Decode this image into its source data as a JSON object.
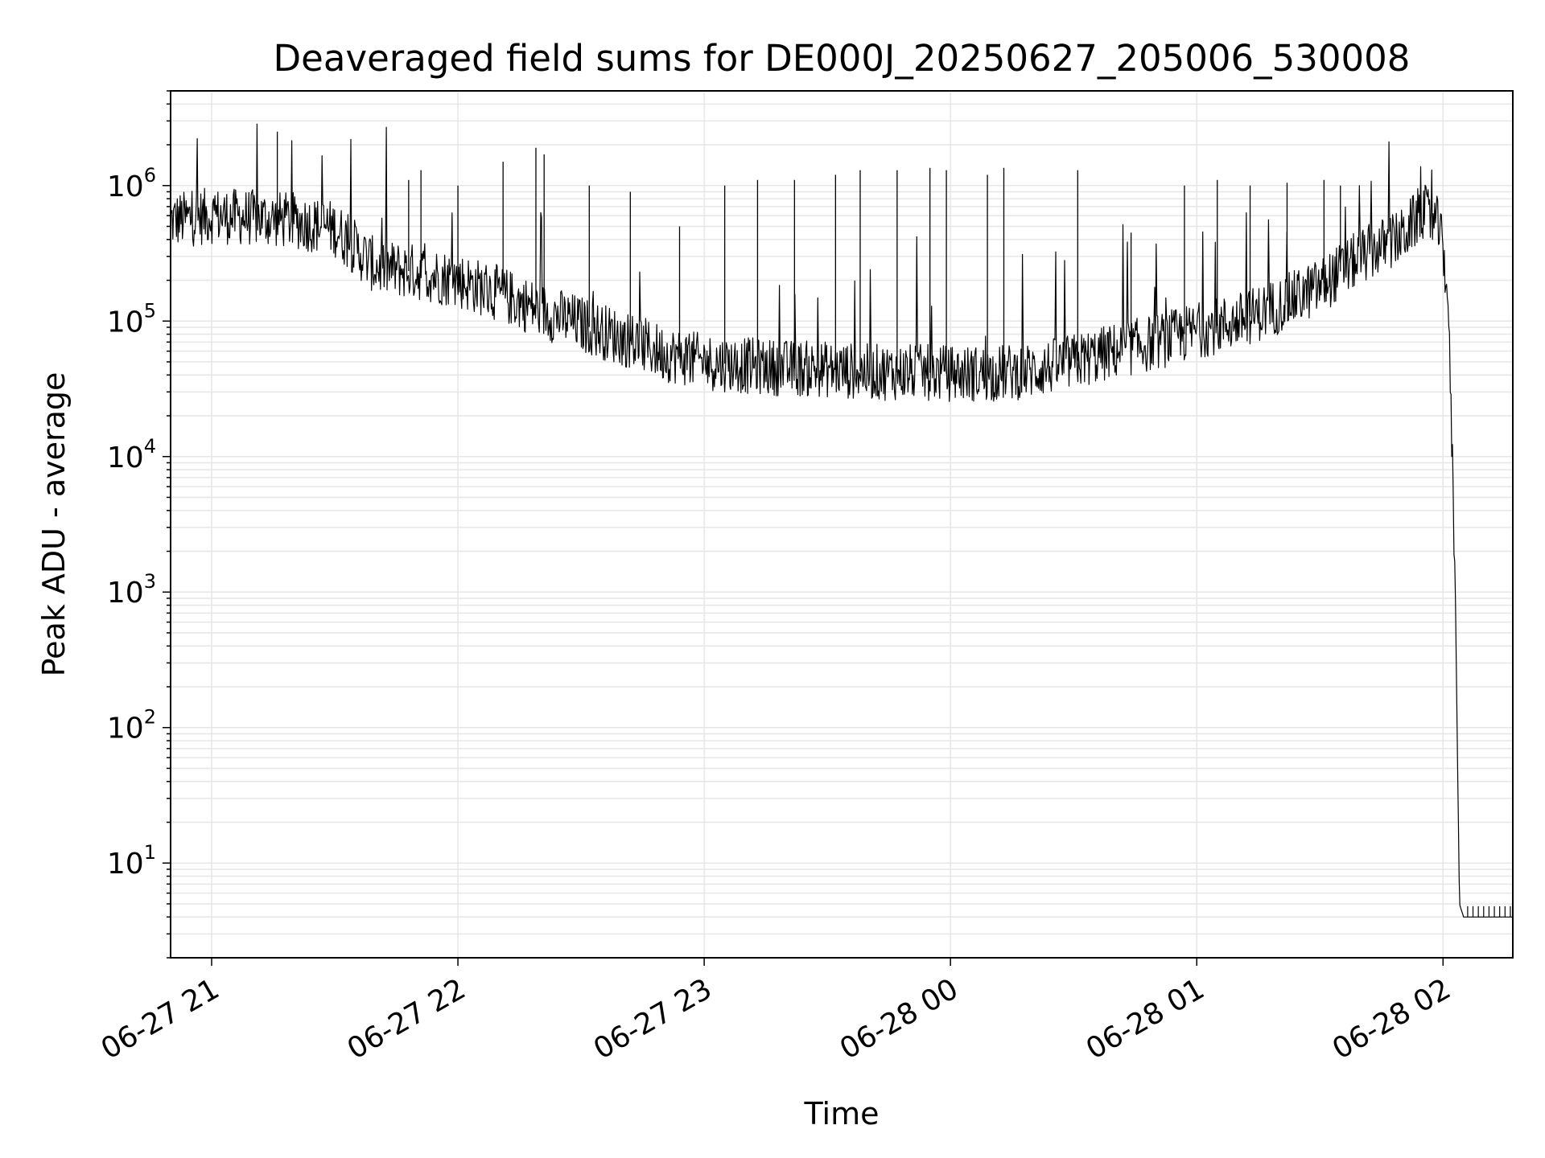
{
  "chart_data": {
    "type": "line",
    "title": "Deaveraged field sums for DE000J_20250627_205006_530008",
    "xlabel": "Time",
    "ylabel": "Peak ADU - average",
    "yscale": "log",
    "grid": true,
    "xlim": [
      "06-27 20:50",
      "06-28 02:17"
    ],
    "ylim": [
      2,
      5000000
    ],
    "x_ticks": [
      "06-27 21",
      "06-27 22",
      "06-27 23",
      "06-28 00",
      "06-28 01",
      "06-28 02"
    ],
    "y_ticks": [
      {
        "base": "10",
        "exp": "1",
        "value": 10
      },
      {
        "base": "10",
        "exp": "2",
        "value": 100
      },
      {
        "base": "10",
        "exp": "3",
        "value": 1000
      },
      {
        "base": "10",
        "exp": "4",
        "value": 10000
      },
      {
        "base": "10",
        "exp": "5",
        "value": 100000
      },
      {
        "base": "10",
        "exp": "6",
        "value": 1000000
      }
    ],
    "line_color": "#000000",
    "grid_color": "#e6e6e6",
    "series": [
      {
        "baseline_x": [
          "06-27 20:50",
          "06-27 21:00",
          "06-27 21:10",
          "06-27 21:20",
          "06-27 21:30",
          "06-27 21:40",
          "06-27 21:50",
          "06-27 22:00",
          "06-27 22:10",
          "06-27 22:20",
          "06-27 22:30",
          "06-27 22:40",
          "06-27 22:50",
          "06-27 23:00",
          "06-27 23:10",
          "06-27 23:20",
          "06-27 23:30",
          "06-27 23:40",
          "06-27 23:50",
          "06-28 00:00",
          "06-28 00:10",
          "06-28 00:20",
          "06-28 00:30",
          "06-28 00:40",
          "06-28 00:50",
          "06-28 01:00",
          "06-28 01:10",
          "06-28 01:20",
          "06-28 01:30",
          "06-28 01:40",
          "06-28 01:50",
          "06-28 01:55",
          "06-28 01:59",
          "06-28 02:01",
          "06-28 02:02",
          "06-28 02:03",
          "06-28 02:04",
          "06-28 02:05",
          "06-28 02:06",
          "06-28 02:10",
          "06-28 02:17"
        ],
        "baseline_y": [
          550000,
          600000,
          580000,
          550000,
          480000,
          250000,
          230000,
          200000,
          160000,
          120000,
          95000,
          75000,
          58000,
          50000,
          47000,
          45000,
          44000,
          42000,
          42000,
          41000,
          41000,
          43000,
          50000,
          60000,
          70000,
          85000,
          100000,
          130000,
          180000,
          300000,
          420000,
          650000,
          500000,
          200000,
          20000,
          1000,
          5,
          4,
          4,
          4,
          4
        ],
        "spikes": [
          {
            "x": "06-27 21:16",
            "y": 2500000
          },
          {
            "x": "06-27 21:48",
            "y": 1100000
          },
          {
            "x": "06-27 21:51",
            "y": 1300000
          },
          {
            "x": "06-27 22:00",
            "y": 1000000
          },
          {
            "x": "06-27 22:11",
            "y": 1500000
          },
          {
            "x": "06-27 22:19",
            "y": 1900000
          },
          {
            "x": "06-27 22:21",
            "y": 1700000
          },
          {
            "x": "06-27 22:32",
            "y": 1000000
          },
          {
            "x": "06-27 22:42",
            "y": 900000
          },
          {
            "x": "06-27 22:54",
            "y": 500000
          },
          {
            "x": "06-27 23:05",
            "y": 1000000
          },
          {
            "x": "06-27 23:13",
            "y": 1100000
          },
          {
            "x": "06-27 23:22",
            "y": 1100000
          },
          {
            "x": "06-27 23:32",
            "y": 1200000
          },
          {
            "x": "06-27 23:38",
            "y": 1300000
          },
          {
            "x": "06-27 23:47",
            "y": 1300000
          },
          {
            "x": "06-27 23:55",
            "y": 1350000
          },
          {
            "x": "06-27 23:59",
            "y": 1300000
          },
          {
            "x": "06-28 00:09",
            "y": 1200000
          },
          {
            "x": "06-28 00:13",
            "y": 1350000
          },
          {
            "x": "06-28 00:31",
            "y": 1300000
          },
          {
            "x": "06-28 00:44",
            "y": 450000
          },
          {
            "x": "06-28 00:57",
            "y": 1000000
          },
          {
            "x": "06-28 01:05",
            "y": 1100000
          },
          {
            "x": "06-28 01:13",
            "y": 1000000
          },
          {
            "x": "06-28 01:22",
            "y": 1050000
          },
          {
            "x": "06-28 01:31",
            "y": 1100000
          },
          {
            "x": "06-28 01:35",
            "y": 1000000
          }
        ]
      }
    ]
  }
}
